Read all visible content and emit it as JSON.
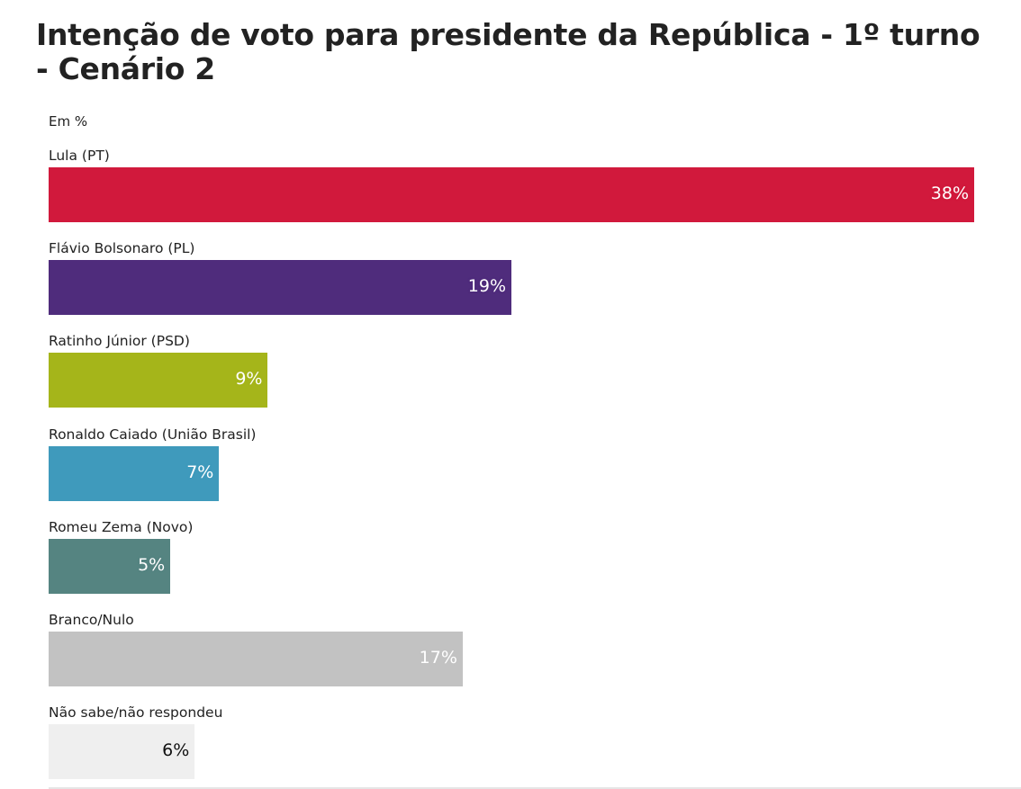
{
  "chart_data": {
    "type": "bar",
    "orientation": "horizontal",
    "title": "Intenção de voto para presidente da República - 1º turno - Cenário 2",
    "subtitle": "Em %",
    "xlabel": "",
    "ylabel": "",
    "xlim": [
      0,
      38
    ],
    "grid": false,
    "legend": "none",
    "categories": [
      "Lula (PT)",
      "Flávio Bolsonaro (PL)",
      "Ratinho Júnior (PSD)",
      "Ronaldo Caiado (União Brasil)",
      "Romeu Zema (Novo)",
      "Branco/Nulo",
      "Não sabe/não respondeu"
    ],
    "values": [
      38,
      19,
      9,
      7,
      5,
      17,
      6
    ],
    "value_labels": [
      "38%",
      "19%",
      "9%",
      "7%",
      "5%",
      "17%",
      "6%"
    ],
    "colors": [
      "#d1193c",
      "#4f2c7c",
      "#a5b51a",
      "#3f9abc",
      "#558481",
      "#c2c2c2",
      "#efefef"
    ],
    "label_colors": [
      "#ffffff",
      "#ffffff",
      "#ffffff",
      "#ffffff",
      "#ffffff",
      "#ffffff",
      "#111111"
    ]
  }
}
